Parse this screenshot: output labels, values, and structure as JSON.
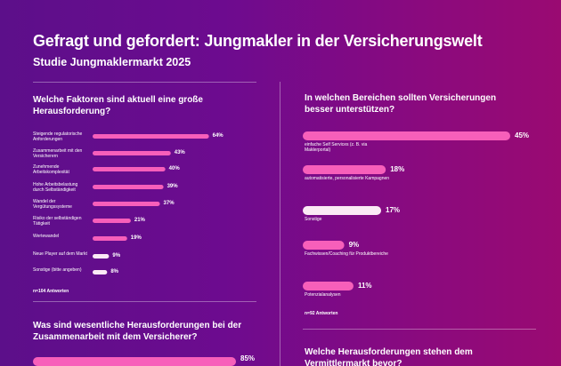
{
  "header": {
    "title": "Gefragt und gefordert: Jungmakler in der Versicherungswelt",
    "subtitle": "Studie Jungmaklermarkt 2025"
  },
  "colors": {
    "bar": "#f75fba",
    "bar_light": "#fbe9f5",
    "background_start": "#5c0f8a",
    "background_end": "#9a0a72"
  },
  "chart_data": [
    {
      "type": "bar",
      "title": "Welche Faktoren sind aktuell eine große Herausforderung?",
      "categories": [
        "Steigende regulatorische Anforderungen",
        "Zusammenarbeit mit den Versicherern",
        "Zunehmende Arbeitskomplexität",
        "Hohe Arbeitsbelastung durch Selbständigkeit",
        "Wandel der Vergütungssysteme",
        "Risiko der selbständigen Tätigkeit",
        "Wertewandel",
        "Neue Player auf dem Markt",
        "Sonstige (bitte angeben)"
      ],
      "values": [
        64,
        43,
        40,
        39,
        37,
        21,
        19,
        9,
        8
      ],
      "value_labels": [
        "64%",
        "43%",
        "40%",
        "39%",
        "37%",
        "21%",
        "19%",
        "9%",
        "8%"
      ],
      "light_bars": [
        7,
        8
      ],
      "note": "n=104 Antworten"
    },
    {
      "type": "bar",
      "title": "In welchen Bereichen sollten Versicherungen besser unterstützen?",
      "categories": [
        "einfache Self Services (z. B. via Maklerportal)",
        "automatisierte, personalisierte Kampagnen",
        "Sonstige",
        "Fachwissen/Coaching für Produktbereiche",
        "Potenzialanalysen"
      ],
      "values": [
        45,
        18,
        17,
        9,
        11
      ],
      "value_labels": [
        "45%",
        "18%",
        "17%",
        "9%",
        "11%"
      ],
      "light_bars": [
        2
      ],
      "note": "n=92 Antworten"
    },
    {
      "type": "bar",
      "title": "Was sind wesentliche Herausforderungen bei der Zusammenarbeit mit dem Versicherer?",
      "categories": [
        ""
      ],
      "values": [
        85
      ],
      "value_labels": [
        "85%"
      ],
      "light_bars": [],
      "note": ""
    },
    {
      "type": "bar",
      "title": "Welche Herausforderungen stehen dem Vermittlermarkt bevor?",
      "categories": [],
      "values": [],
      "value_labels": [],
      "light_bars": [],
      "note": ""
    }
  ]
}
